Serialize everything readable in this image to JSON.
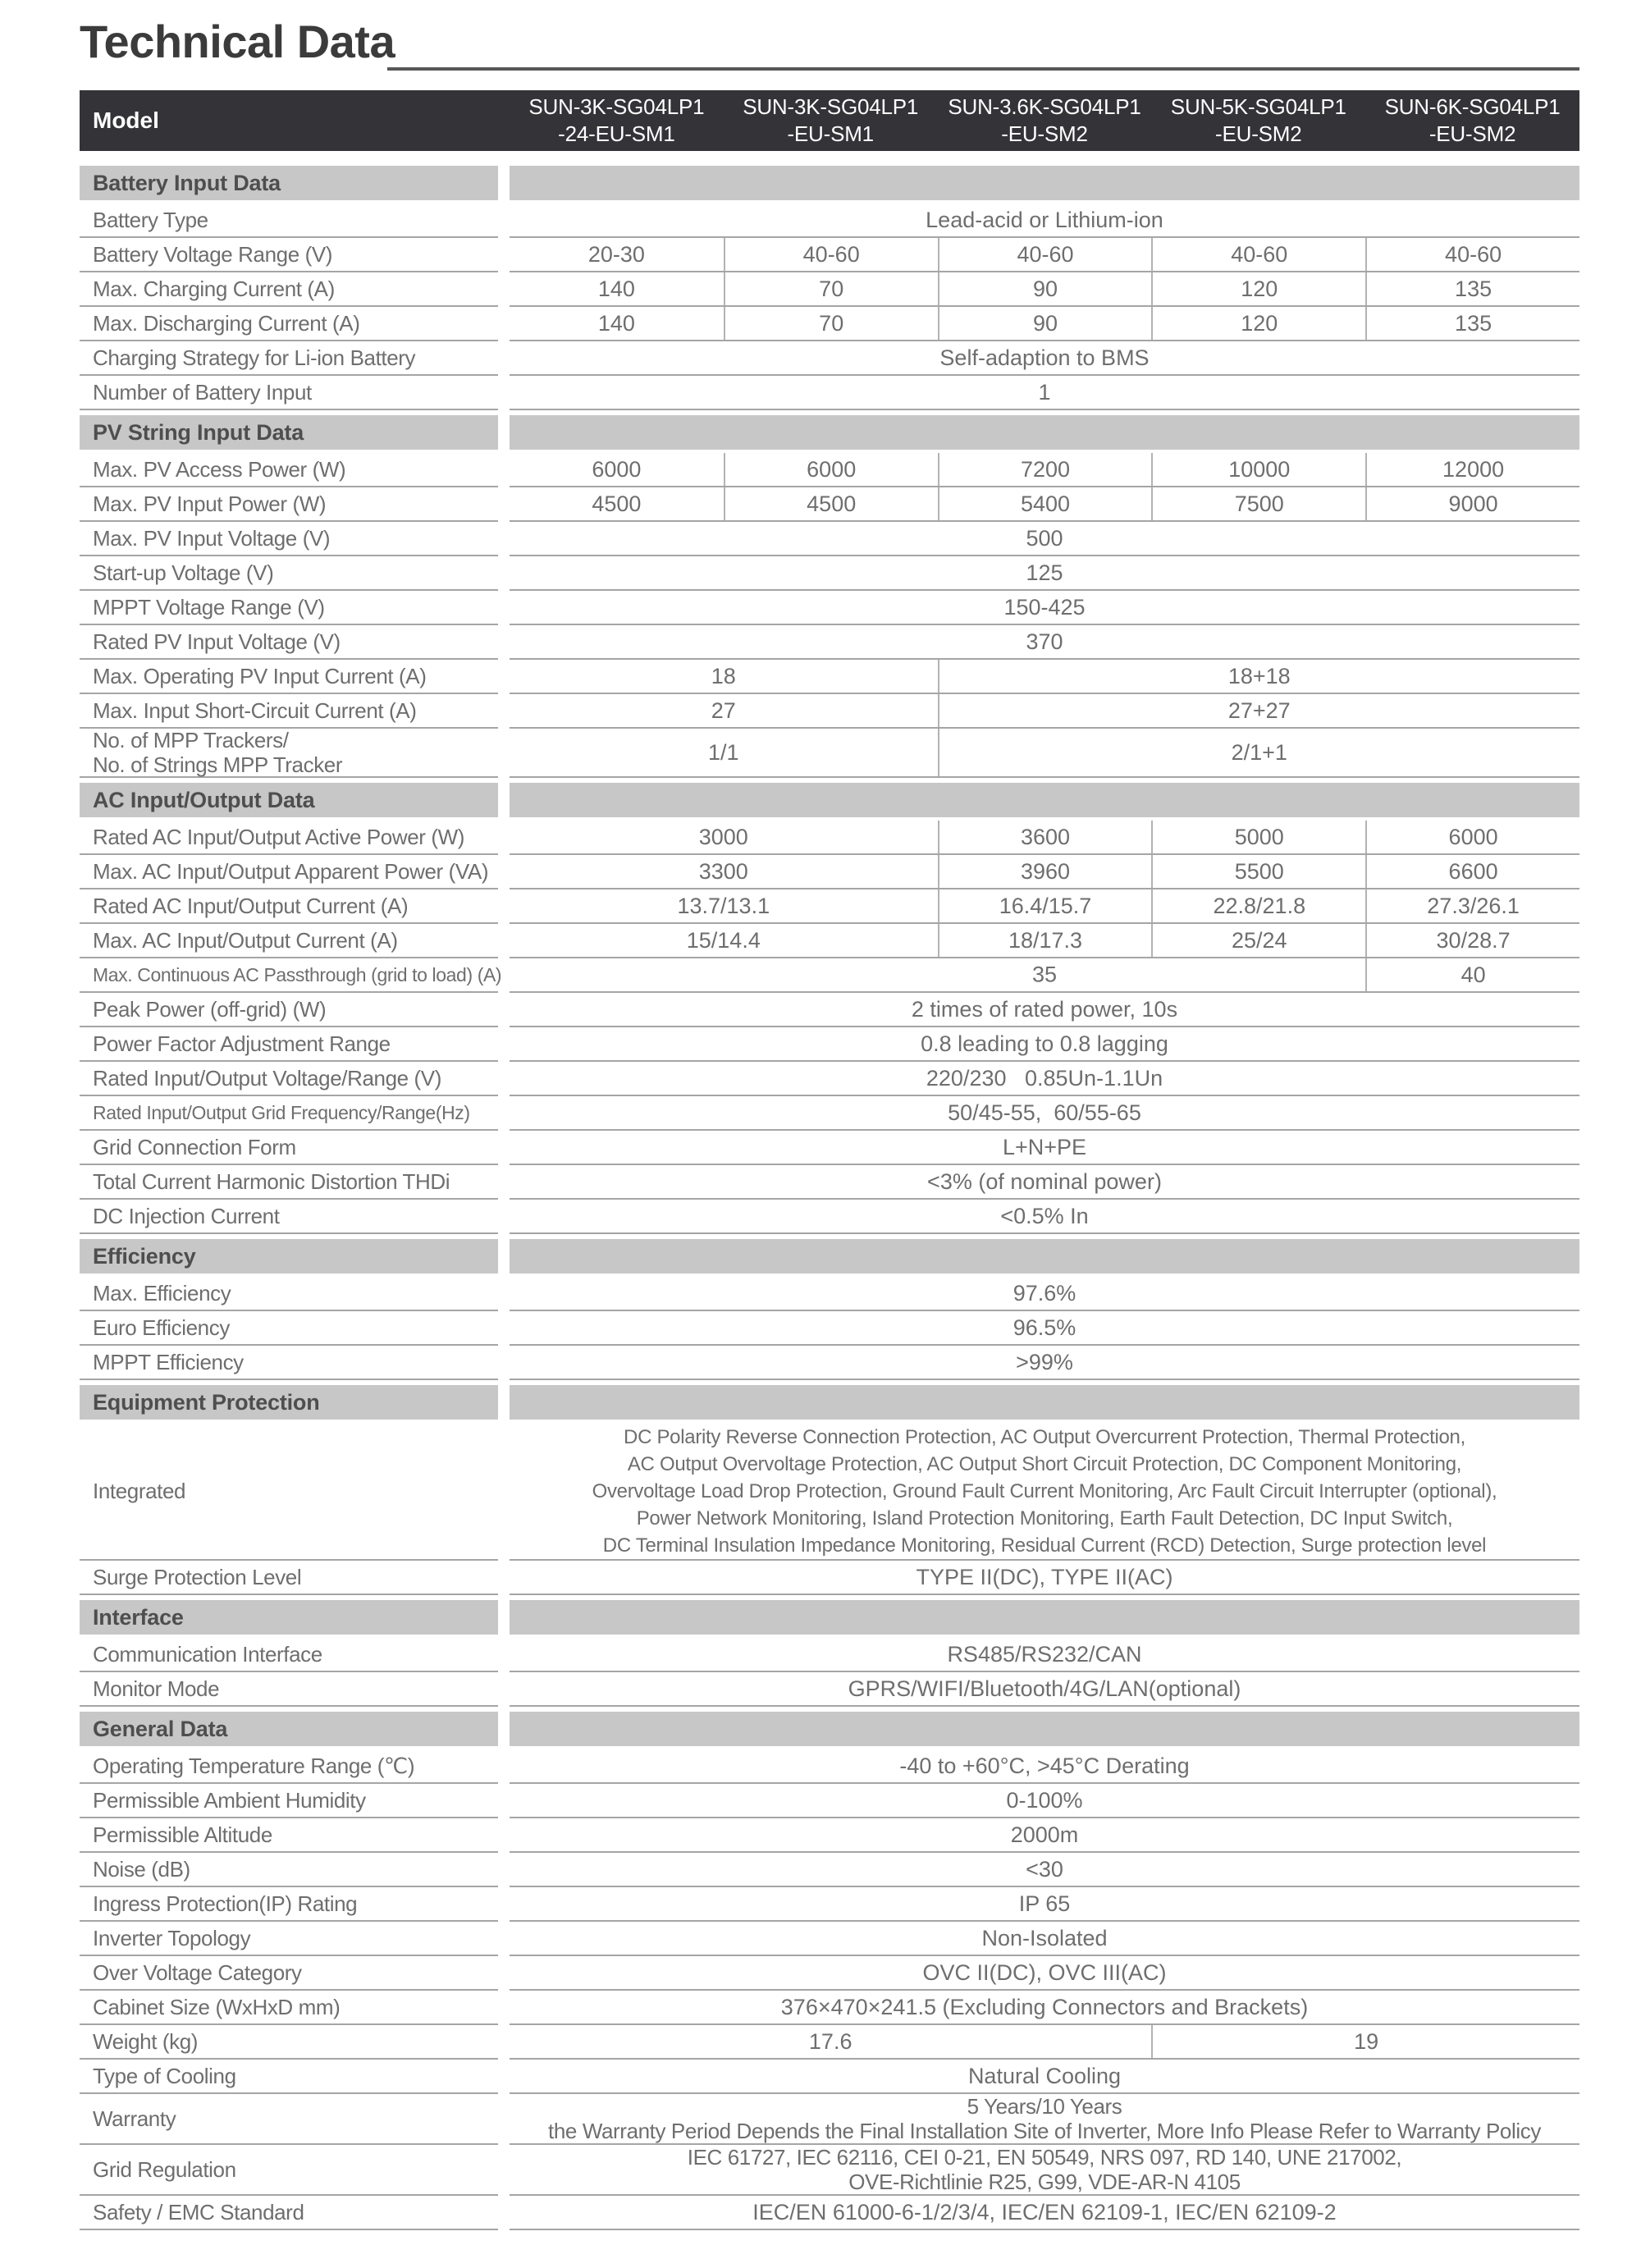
{
  "page": {
    "title": "Technical Data"
  },
  "colors": {
    "header_bg": "#343438",
    "section_bg": "#c7c7c7",
    "text": "#6e6e6e",
    "rule": "#575757"
  },
  "header": {
    "model_label": "Model",
    "models": [
      {
        "line1": "SUN-3K-SG04LP1",
        "line2": "-24-EU-SM1"
      },
      {
        "line1": "SUN-3K-SG04LP1",
        "line2": "-EU-SM1"
      },
      {
        "line1": "SUN-3.6K-SG04LP1",
        "line2": "-EU-SM2"
      },
      {
        "line1": "SUN-5K-SG04LP1",
        "line2": "-EU-SM2"
      },
      {
        "line1": "SUN-6K-SG04LP1",
        "line2": "-EU-SM2"
      }
    ]
  },
  "sections": [
    {
      "label": "Battery Input Data",
      "rows": [
        {
          "label": "Battery Type",
          "cells": [
            {
              "cols": 5,
              "text": "Lead-acid or Lithium-ion"
            }
          ]
        },
        {
          "label": "Battery Voltage Range (V)",
          "cells": [
            {
              "cols": 1,
              "text": "20-30"
            },
            {
              "cols": 1,
              "text": "40-60"
            },
            {
              "cols": 1,
              "text": "40-60"
            },
            {
              "cols": 1,
              "text": "40-60"
            },
            {
              "cols": 1,
              "text": "40-60"
            }
          ]
        },
        {
          "label": "Max. Charging Current (A)",
          "cells": [
            {
              "cols": 1,
              "text": "140"
            },
            {
              "cols": 1,
              "text": "70"
            },
            {
              "cols": 1,
              "text": "90"
            },
            {
              "cols": 1,
              "text": "120"
            },
            {
              "cols": 1,
              "text": "135"
            }
          ]
        },
        {
          "label": "Max. Discharging Current (A)",
          "cells": [
            {
              "cols": 1,
              "text": "140"
            },
            {
              "cols": 1,
              "text": "70"
            },
            {
              "cols": 1,
              "text": "90"
            },
            {
              "cols": 1,
              "text": "120"
            },
            {
              "cols": 1,
              "text": "135"
            }
          ]
        },
        {
          "label": "Charging Strategy for Li-ion Battery",
          "cells": [
            {
              "cols": 5,
              "text": "Self-adaption to BMS"
            }
          ]
        },
        {
          "label": "Number of Battery Input",
          "cells": [
            {
              "cols": 5,
              "text": "1"
            }
          ]
        }
      ]
    },
    {
      "label": "PV String Input Data",
      "rows": [
        {
          "label": "Max. PV Access Power (W)",
          "cells": [
            {
              "cols": 1,
              "text": "6000"
            },
            {
              "cols": 1,
              "text": "6000"
            },
            {
              "cols": 1,
              "text": "7200"
            },
            {
              "cols": 1,
              "text": "10000"
            },
            {
              "cols": 1,
              "text": "12000"
            }
          ]
        },
        {
          "label": "Max. PV Input Power (W)",
          "cells": [
            {
              "cols": 1,
              "text": "4500"
            },
            {
              "cols": 1,
              "text": "4500"
            },
            {
              "cols": 1,
              "text": "5400"
            },
            {
              "cols": 1,
              "text": "7500"
            },
            {
              "cols": 1,
              "text": "9000"
            }
          ]
        },
        {
          "label": "Max. PV Input Voltage (V)",
          "cells": [
            {
              "cols": 5,
              "text": "500"
            }
          ]
        },
        {
          "label": "Start-up Voltage (V)",
          "cells": [
            {
              "cols": 5,
              "text": "125"
            }
          ]
        },
        {
          "label": "MPPT  Voltage Range (V)",
          "cells": [
            {
              "cols": 5,
              "text": "150-425"
            }
          ]
        },
        {
          "label": "Rated PV Input Voltage (V)",
          "cells": [
            {
              "cols": 5,
              "text": "370"
            }
          ]
        },
        {
          "label": "Max. Operating PV Input Current (A)",
          "cells": [
            {
              "cols": 2,
              "text": "18"
            },
            {
              "cols": 3,
              "text": "18+18"
            }
          ]
        },
        {
          "label": "Max. Input Short-Circuit Current (A)",
          "cells": [
            {
              "cols": 2,
              "text": "27"
            },
            {
              "cols": 3,
              "text": "27+27"
            }
          ]
        },
        {
          "label": "No. of MPP Trackers/",
          "label2": "No. of Strings MPP Tracker",
          "cells": [
            {
              "cols": 2,
              "text": "1/1"
            },
            {
              "cols": 3,
              "text": "2/1+1"
            }
          ]
        }
      ]
    },
    {
      "label": "AC Input/Output Data",
      "rows": [
        {
          "label": "Rated AC Input/Output Active Power (W)",
          "cells": [
            {
              "cols": 2,
              "text": "3000"
            },
            {
              "cols": 1,
              "text": "3600"
            },
            {
              "cols": 1,
              "text": "5000"
            },
            {
              "cols": 1,
              "text": "6000"
            }
          ]
        },
        {
          "label": "Max. AC Input/Output Apparent Power (VA)",
          "cells": [
            {
              "cols": 2,
              "text": "3300"
            },
            {
              "cols": 1,
              "text": "3960"
            },
            {
              "cols": 1,
              "text": "5500"
            },
            {
              "cols": 1,
              "text": "6600"
            }
          ]
        },
        {
          "label": "Rated AC Input/Output Current (A)",
          "cells": [
            {
              "cols": 2,
              "text": "13.7/13.1"
            },
            {
              "cols": 1,
              "text": "16.4/15.7"
            },
            {
              "cols": 1,
              "text": "22.8/21.8"
            },
            {
              "cols": 1,
              "text": "27.3/26.1"
            }
          ]
        },
        {
          "label": "Max. AC Input/Output Current (A)",
          "cells": [
            {
              "cols": 2,
              "text": "15/14.4"
            },
            {
              "cols": 1,
              "text": "18/17.3"
            },
            {
              "cols": 1,
              "text": "25/24"
            },
            {
              "cols": 1,
              "text": "30/28.7"
            }
          ]
        },
        {
          "label": "Max. Continuous AC Passthrough (grid to load) (A)",
          "cells": [
            {
              "cols": 4,
              "text": "35",
              "center_full": true
            },
            {
              "cols": 1,
              "text": "40"
            }
          ]
        },
        {
          "label": "Peak Power (off-grid) (W)",
          "cells": [
            {
              "cols": 5,
              "text": "2 times of rated power, 10s"
            }
          ]
        },
        {
          "label": "Power Factor Adjustment Range",
          "cells": [
            {
              "cols": 5,
              "text": "0.8 leading to 0.8 lagging"
            }
          ]
        },
        {
          "label": "Rated Input/Output Voltage/Range (V)",
          "cells": [
            {
              "cols": 5,
              "text": "220/230   0.85Un-1.1Un"
            }
          ]
        },
        {
          "label": "Rated Input/Output Grid Frequency/Range(Hz)",
          "cells": [
            {
              "cols": 5,
              "text": "50/45-55,  60/55-65"
            }
          ]
        },
        {
          "label": "Grid Connection Form",
          "cells": [
            {
              "cols": 5,
              "text": "L+N+PE"
            }
          ]
        },
        {
          "label": "Total Current Harmonic Distortion THDi",
          "cells": [
            {
              "cols": 5,
              "text": "<3% (of nominal power)"
            }
          ]
        },
        {
          "label": "DC Injection Current",
          "cells": [
            {
              "cols": 5,
              "text": "<0.5% In"
            }
          ]
        }
      ]
    },
    {
      "label": "Efficiency",
      "rows": [
        {
          "label": "Max. Efficiency",
          "cells": [
            {
              "cols": 5,
              "text": "97.6%"
            }
          ]
        },
        {
          "label": "Euro Efficiency",
          "cells": [
            {
              "cols": 5,
              "text": "96.5%"
            }
          ]
        },
        {
          "label": "MPPT Efficiency",
          "cells": [
            {
              "cols": 5,
              "text": ">99%"
            }
          ]
        }
      ]
    },
    {
      "label": "Equipment Protection",
      "rows": [
        {
          "label": "Integrated",
          "cells": [
            {
              "cols": 5,
              "lines": [
                "DC Polarity Reverse Connection Protection, AC Output Overcurrent Protection, Thermal Protection,",
                "AC Output Overvoltage Protection, AC Output Short Circuit Protection, DC Component Monitoring,",
                "Overvoltage Load Drop Protection, Ground Fault Current Monitoring, Arc Fault Circuit Interrupter (optional),",
                "Power Network Monitoring, Island Protection Monitoring, Earth Fault Detection, DC Input Switch,",
                "DC Terminal Insulation Impedance Monitoring, Residual Current (RCD) Detection, Surge protection level"
              ]
            }
          ]
        },
        {
          "label": "Surge Protection Level",
          "cells": [
            {
              "cols": 5,
              "text": "TYPE II(DC), TYPE II(AC)"
            }
          ]
        }
      ]
    },
    {
      "label": "Interface",
      "rows": [
        {
          "label": "Communication Interface",
          "cells": [
            {
              "cols": 5,
              "text": "RS485/RS232/CAN"
            }
          ]
        },
        {
          "label": "Monitor Mode",
          "cells": [
            {
              "cols": 5,
              "text": "GPRS/WIFI/Bluetooth/4G/LAN(optional)"
            }
          ]
        }
      ]
    },
    {
      "label": "General Data",
      "rows": [
        {
          "label": "Operating Temperature Range (℃)",
          "cells": [
            {
              "cols": 5,
              "text": "-40 to +60°C, >45°C Derating"
            }
          ]
        },
        {
          "label": "Permissible Ambient Humidity",
          "cells": [
            {
              "cols": 5,
              "text": "0-100%"
            }
          ]
        },
        {
          "label": "Permissible Altitude",
          "cells": [
            {
              "cols": 5,
              "text": "2000m"
            }
          ]
        },
        {
          "label": "Noise (dB)",
          "cells": [
            {
              "cols": 5,
              "text": "<30"
            }
          ]
        },
        {
          "label": "Ingress Protection(IP) Rating",
          "cells": [
            {
              "cols": 5,
              "text": "IP 65"
            }
          ]
        },
        {
          "label": "Inverter Topology",
          "cells": [
            {
              "cols": 5,
              "text": "Non-Isolated"
            }
          ]
        },
        {
          "label": "Over Voltage Category",
          "cells": [
            {
              "cols": 5,
              "text": "OVC II(DC), OVC III(AC)"
            }
          ]
        },
        {
          "label": "Cabinet Size (WxHxD mm)",
          "cells": [
            {
              "cols": 5,
              "text": "376×470×241.5 (Excluding Connectors and Brackets)"
            }
          ]
        },
        {
          "label": "Weight (kg)",
          "cells": [
            {
              "cols": 3,
              "text": "17.6"
            },
            {
              "cols": 2,
              "text": "19"
            }
          ]
        },
        {
          "label": "Type of Cooling",
          "cells": [
            {
              "cols": 5,
              "text": "Natural Cooling"
            }
          ]
        },
        {
          "label": "Warranty",
          "cells": [
            {
              "cols": 5,
              "lines": [
                "5 Years/10 Years",
                "the Warranty Period Depends the Final Installation Site of Inverter, More Info Please Refer to Warranty Policy"
              ]
            }
          ]
        },
        {
          "label": "Grid Regulation",
          "cells": [
            {
              "cols": 5,
              "lines": [
                "IEC 61727, IEC 62116, CEI 0-21, EN 50549, NRS 097, RD 140, UNE 217002,",
                "OVE-Richtlinie R25, G99, VDE-AR-N 4105"
              ]
            }
          ]
        },
        {
          "label": "Safety / EMC Standard",
          "cells": [
            {
              "cols": 5,
              "text": "IEC/EN 61000-6-1/2/3/4, IEC/EN 62109-1, IEC/EN 62109-2"
            }
          ]
        }
      ]
    }
  ]
}
